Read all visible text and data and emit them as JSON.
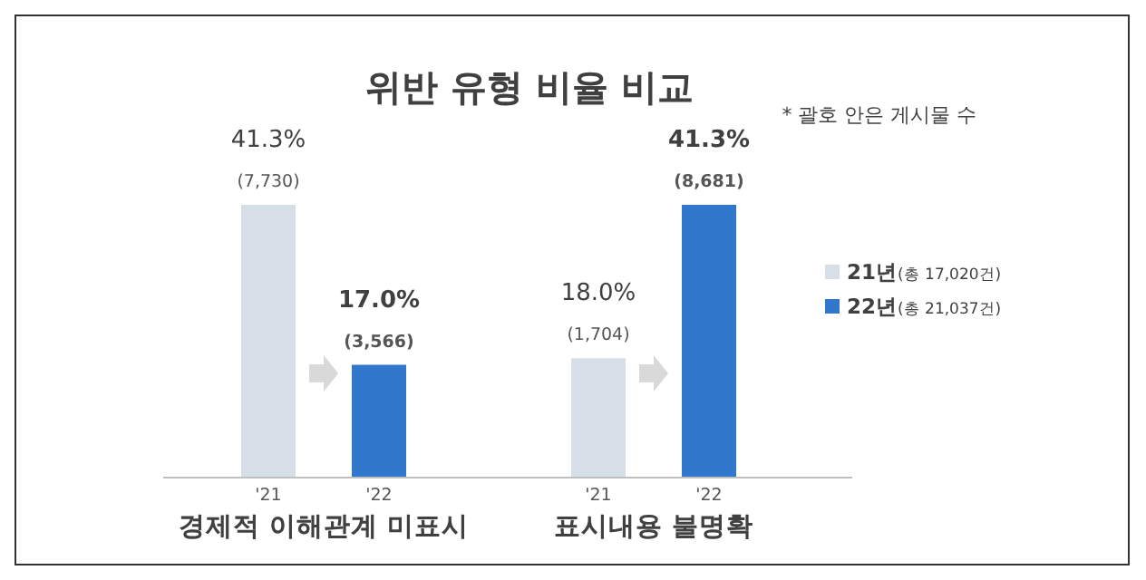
{
  "chart_data": {
    "type": "bar",
    "title": "위반 유형 비율 비교",
    "categories": [
      "'21",
      "'22",
      "'21",
      "'22"
    ],
    "series": [
      {
        "name": "21년(총 17,020건)",
        "color": "#d6dfe8",
        "values": [
          41.3,
          null,
          18.0,
          null
        ],
        "value_labels": [
          "41.3%\n(7,730)",
          null,
          "18.0%\n(1,704)",
          null
        ]
      },
      {
        "name": "22년(총 21,037건)",
        "color": "#3178cc",
        "values": [
          null,
          17.0,
          null,
          41.3
        ],
        "value_labels": [
          null,
          "17.0%\n(3,566)",
          null,
          "41.3%\n(8,681)"
        ]
      }
    ],
    "annotations": [
      "경제적 이해관계 미표시",
      "표시내용 불명확",
      "* 괄호 안은 게시물 수"
    ],
    "legend": "right"
  }
}
